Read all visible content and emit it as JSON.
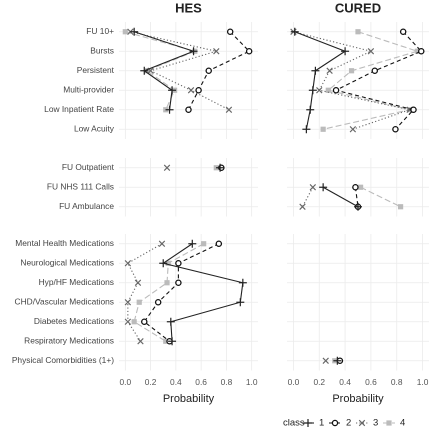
{
  "chart_data": {
    "type": "line",
    "x_label": "Probability",
    "legend_title": "class",
    "xlim": [
      -0.05,
      1.05
    ],
    "xticks": [
      {
        "value": 0,
        "label": "0.0"
      },
      {
        "value": 0.2,
        "label": "0.2"
      },
      {
        "value": 0.4,
        "label": "0.4"
      },
      {
        "value": 0.6,
        "label": "0.6"
      },
      {
        "value": 0.8,
        "label": "0.8"
      },
      {
        "value": 1,
        "label": "1.0"
      }
    ],
    "grid": true,
    "series": [
      {
        "name": "1",
        "color": "#222222",
        "marker": "plus",
        "dash": "solid"
      },
      {
        "name": "2",
        "color": "#111111",
        "marker": "circle",
        "dash": "dashed"
      },
      {
        "name": "3",
        "color": "#666666",
        "marker": "cross",
        "dash": "dotted"
      },
      {
        "name": "4",
        "color": "#bbbbbb",
        "marker": "square",
        "dash": "longdash"
      }
    ],
    "row_groups": [
      {
        "categories": [
          "FU 10+",
          "Bursts",
          "Persistent",
          "Multi-provider",
          "Low Inpatient Rate",
          "Low Acuity"
        ]
      },
      {
        "categories": [
          "FU Outpatient",
          "FU NHS 111 Calls",
          "FU Ambulance"
        ]
      },
      {
        "categories": [
          "Mental Health Medications",
          "Neurological Medications",
          "Hyp/HF Medications",
          "CHD/Vascular Medications",
          "Diabetes Medications",
          "Respiratory Medications",
          "Physical Comorbidities (1+)"
        ]
      }
    ],
    "panels": [
      {
        "title": "HES",
        "groups": [
          {
            "series": [
              {
                "values": [
                  0.07,
                  0.54,
                  0.15,
                  0.37,
                  0.35,
                  null
                ]
              },
              {
                "values": [
                  0.83,
                  0.98,
                  0.66,
                  0.58,
                  0.5,
                  null
                ]
              },
              {
                "values": [
                  0.04,
                  0.72,
                  0.2,
                  0.52,
                  0.82,
                  null
                ]
              },
              {
                "values": [
                  0.0,
                  0.55,
                  0.17,
                  0.39,
                  0.32,
                  null
                ]
              }
            ]
          },
          {
            "series": [
              {
                "values": [
                  0.75,
                  null,
                  null
                ]
              },
              {
                "values": [
                  0.76,
                  null,
                  null
                ]
              },
              {
                "values": [
                  0.33,
                  null,
                  null
                ]
              },
              {
                "values": [
                  0.72,
                  null,
                  null
                ]
              }
            ]
          },
          {
            "series": [
              {
                "values": [
                  0.53,
                  0.3,
                  0.93,
                  0.91,
                  0.36,
                  0.37,
                  null
                ]
              },
              {
                "values": [
                  0.74,
                  0.42,
                  0.42,
                  0.26,
                  0.15,
                  0.35,
                  null
                ]
              },
              {
                "values": [
                  0.29,
                  0.02,
                  0.1,
                  0.02,
                  0.02,
                  0.12,
                  null
                ]
              },
              {
                "values": [
                  0.62,
                  0.34,
                  0.33,
                  0.11,
                  0.07,
                  0.32,
                  null
                ]
              }
            ]
          }
        ]
      },
      {
        "title": "CURED",
        "groups": [
          {
            "series": [
              {
                "values": [
                  0.01,
                  0.4,
                  0.17,
                  0.15,
                  0.13,
                  0.1
                ]
              },
              {
                "values": [
                  0.85,
                  0.99,
                  0.63,
                  0.33,
                  0.93,
                  0.79
                ]
              },
              {
                "values": [
                  0.0,
                  0.6,
                  0.28,
                  0.2,
                  0.9,
                  0.46
                ]
              },
              {
                "values": [
                  0.5,
                  0.96,
                  0.45,
                  0.27,
                  0.9,
                  0.23
                ]
              }
            ]
          },
          {
            "series": [
              {
                "values": [
                  null,
                  0.23,
                  0.5
                ]
              },
              {
                "values": [
                  null,
                  0.48,
                  0.5
                ]
              },
              {
                "values": [
                  null,
                  0.15,
                  0.07
                ]
              },
              {
                "values": [
                  null,
                  0.52,
                  0.83
                ]
              }
            ]
          },
          {
            "series": [
              {
                "values": [
                  null,
                  null,
                  null,
                  null,
                  null,
                  null,
                  0.34
                ]
              },
              {
                "values": [
                  null,
                  null,
                  null,
                  null,
                  null,
                  null,
                  0.36
                ]
              },
              {
                "values": [
                  null,
                  null,
                  null,
                  null,
                  null,
                  null,
                  0.25
                ]
              },
              {
                "values": [
                  null,
                  null,
                  null,
                  null,
                  null,
                  null,
                  0.32
                ]
              }
            ]
          }
        ]
      }
    ]
  }
}
